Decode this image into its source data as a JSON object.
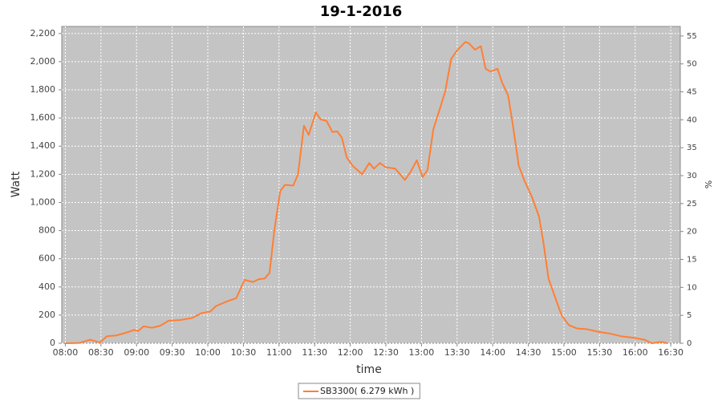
{
  "chart_data": {
    "type": "line",
    "title": "19-1-2016",
    "xlabel": "time",
    "ylabel": "Watt",
    "y2label": "%",
    "x": [
      "08:00",
      "08:12",
      "08:21",
      "08:29",
      "08:35",
      "08:43",
      "08:53",
      "08:58",
      "09:01",
      "09:06",
      "09:13",
      "09:20",
      "09:27",
      "09:37",
      "09:47",
      "09:55",
      "10:02",
      "10:07",
      "10:17",
      "10:24",
      "10:31",
      "10:38",
      "10:43",
      "10:48",
      "10:52",
      "10:56",
      "11:01",
      "11:05",
      "11:12",
      "11:16",
      "11:21",
      "11:25",
      "11:31",
      "11:35",
      "11:40",
      "11:45",
      "11:49",
      "11:53",
      "11:57",
      "12:02",
      "12:10",
      "12:16",
      "12:20",
      "12:25",
      "12:30",
      "12:38",
      "12:46",
      "12:51",
      "12:56",
      "13:01",
      "13:05",
      "13:10",
      "13:16",
      "13:20",
      "13:25",
      "13:30",
      "13:37",
      "13:40",
      "13:45",
      "13:50",
      "13:54",
      "13:58",
      "14:04",
      "14:08",
      "14:13",
      "14:17",
      "14:22",
      "14:27",
      "14:33",
      "14:39",
      "14:43",
      "14:47",
      "14:52",
      "14:58",
      "15:04",
      "15:11",
      "15:19",
      "15:30",
      "15:38",
      "15:48",
      "15:58",
      "16:08",
      "16:14",
      "16:22",
      "16:27"
    ],
    "series": [
      {
        "name": "SB3300( 6.279 kWh )",
        "color": "#ff7f35",
        "values": [
          0,
          2,
          25,
          5,
          50,
          55,
          80,
          95,
          85,
          120,
          110,
          125,
          160,
          165,
          180,
          215,
          225,
          265,
          300,
          320,
          450,
          435,
          455,
          460,
          500,
          800,
          1080,
          1125,
          1120,
          1200,
          1545,
          1480,
          1640,
          1590,
          1580,
          1500,
          1505,
          1460,
          1320,
          1260,
          1200,
          1280,
          1240,
          1280,
          1250,
          1240,
          1160,
          1220,
          1300,
          1180,
          1230,
          1520,
          1680,
          1790,
          2020,
          2080,
          2140,
          2130,
          2085,
          2110,
          1950,
          1930,
          1950,
          1850,
          1760,
          1550,
          1260,
          1150,
          1040,
          900,
          700,
          460,
          340,
          200,
          130,
          105,
          100,
          80,
          70,
          50,
          40,
          25,
          0,
          10,
          0
        ]
      }
    ],
    "xlim": [
      "07:57",
      "16:38"
    ],
    "xticks": [
      "08:00",
      "08:30",
      "09:00",
      "09:30",
      "10:00",
      "10:30",
      "11:00",
      "11:30",
      "12:00",
      "12:30",
      "13:00",
      "13:30",
      "14:00",
      "14:30",
      "15:00",
      "15:30",
      "16:00",
      "16:30"
    ],
    "ylim": [
      0,
      2250
    ],
    "yticks": [
      0,
      200,
      400,
      600,
      800,
      {
        "value": 1000,
        "label": "1,000"
      },
      {
        "value": 1200,
        "label": "1,200"
      },
      {
        "value": 1400,
        "label": "1,400"
      },
      {
        "value": 1600,
        "label": "1,600"
      },
      {
        "value": 1800,
        "label": "1,800"
      },
      {
        "value": 2000,
        "label": "2,000"
      },
      {
        "value": 2200,
        "label": "2,200"
      }
    ],
    "y2lim": [
      0,
      56.7
    ],
    "y2ticks": [
      0,
      5,
      10,
      15,
      20,
      25,
      30,
      35,
      40,
      45,
      50,
      55
    ],
    "grid": true,
    "legend": "bottom",
    "background": "#c4c4c4"
  }
}
